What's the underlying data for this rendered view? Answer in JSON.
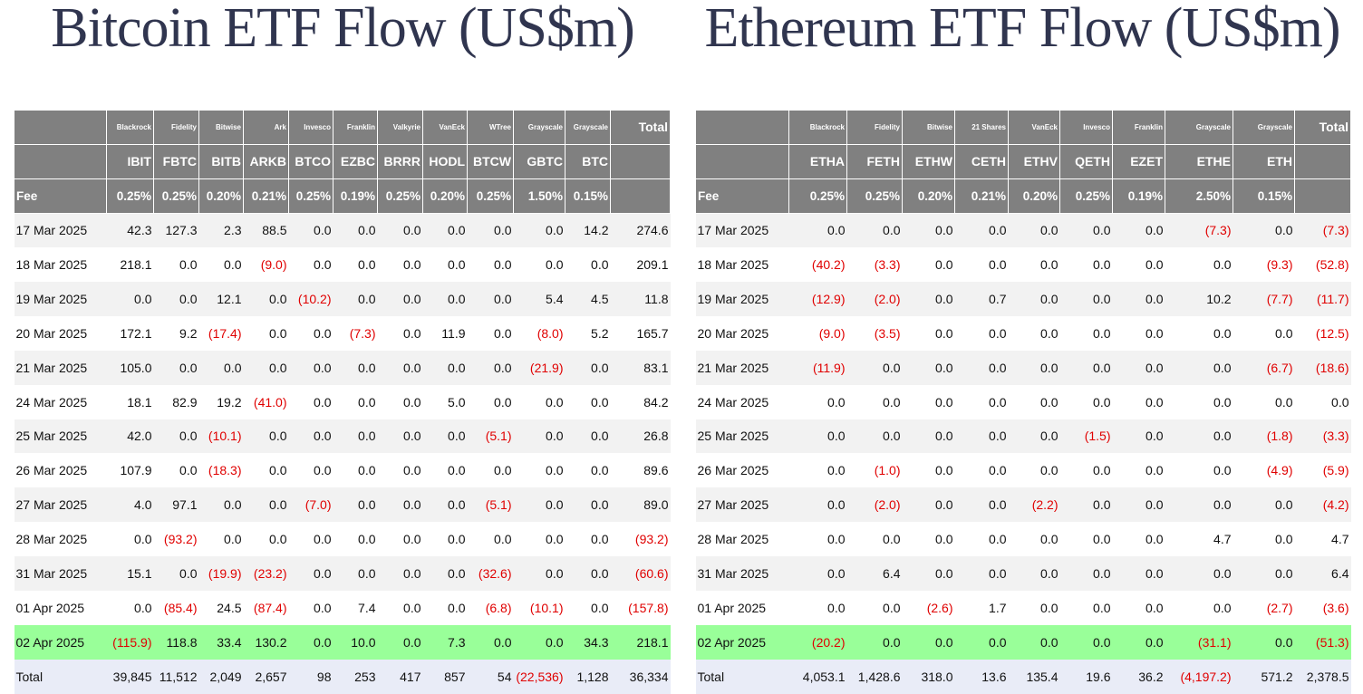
{
  "bitcoin": {
    "title": "Bitcoin ETF Flow (US$m)",
    "issuers": [
      "Blackrock",
      "Fidelity",
      "Bitwise",
      "Ark",
      "Invesco",
      "Franklin",
      "Valkyrie",
      "VanEck",
      "WTree",
      "Grayscale",
      "Grayscale"
    ],
    "total_header": "Total",
    "tickers": [
      "IBIT",
      "FBTC",
      "BITB",
      "ARKB",
      "BTCO",
      "EZBC",
      "BRRR",
      "HODL",
      "BTCW",
      "GBTC",
      "BTC"
    ],
    "fee_label": "Fee",
    "fees": [
      "0.25%",
      "0.25%",
      "0.20%",
      "0.21%",
      "0.25%",
      "0.19%",
      "0.25%",
      "0.20%",
      "0.25%",
      "1.50%",
      "0.15%"
    ],
    "rows": [
      {
        "date": "17 Mar 2025",
        "values": [
          "42.3",
          "127.3",
          "2.3",
          "88.5",
          "0.0",
          "0.0",
          "0.0",
          "0.0",
          "0.0",
          "0.0",
          "14.2",
          "274.6"
        ]
      },
      {
        "date": "18 Mar 2025",
        "values": [
          "218.1",
          "0.0",
          "0.0",
          "(9.0)",
          "0.0",
          "0.0",
          "0.0",
          "0.0",
          "0.0",
          "0.0",
          "0.0",
          "209.1"
        ]
      },
      {
        "date": "19 Mar 2025",
        "values": [
          "0.0",
          "0.0",
          "12.1",
          "0.0",
          "(10.2)",
          "0.0",
          "0.0",
          "0.0",
          "0.0",
          "5.4",
          "4.5",
          "11.8"
        ]
      },
      {
        "date": "20 Mar 2025",
        "values": [
          "172.1",
          "9.2",
          "(17.4)",
          "0.0",
          "0.0",
          "(7.3)",
          "0.0",
          "11.9",
          "0.0",
          "(8.0)",
          "5.2",
          "165.7"
        ]
      },
      {
        "date": "21 Mar 2025",
        "values": [
          "105.0",
          "0.0",
          "0.0",
          "0.0",
          "0.0",
          "0.0",
          "0.0",
          "0.0",
          "0.0",
          "(21.9)",
          "0.0",
          "83.1"
        ]
      },
      {
        "date": "24 Mar 2025",
        "values": [
          "18.1",
          "82.9",
          "19.2",
          "(41.0)",
          "0.0",
          "0.0",
          "0.0",
          "5.0",
          "0.0",
          "0.0",
          "0.0",
          "84.2"
        ]
      },
      {
        "date": "25 Mar 2025",
        "values": [
          "42.0",
          "0.0",
          "(10.1)",
          "0.0",
          "0.0",
          "0.0",
          "0.0",
          "0.0",
          "(5.1)",
          "0.0",
          "0.0",
          "26.8"
        ]
      },
      {
        "date": "26 Mar 2025",
        "values": [
          "107.9",
          "0.0",
          "(18.3)",
          "0.0",
          "0.0",
          "0.0",
          "0.0",
          "0.0",
          "0.0",
          "0.0",
          "0.0",
          "89.6"
        ]
      },
      {
        "date": "27 Mar 2025",
        "values": [
          "4.0",
          "97.1",
          "0.0",
          "0.0",
          "(7.0)",
          "0.0",
          "0.0",
          "0.0",
          "(5.1)",
          "0.0",
          "0.0",
          "89.0"
        ]
      },
      {
        "date": "28 Mar 2025",
        "values": [
          "0.0",
          "(93.2)",
          "0.0",
          "0.0",
          "0.0",
          "0.0",
          "0.0",
          "0.0",
          "0.0",
          "0.0",
          "0.0",
          "(93.2)"
        ]
      },
      {
        "date": "31 Mar 2025",
        "values": [
          "15.1",
          "0.0",
          "(19.9)",
          "(23.2)",
          "0.0",
          "0.0",
          "0.0",
          "0.0",
          "(32.6)",
          "0.0",
          "0.0",
          "(60.6)"
        ]
      },
      {
        "date": "01 Apr 2025",
        "values": [
          "0.0",
          "(85.4)",
          "24.5",
          "(87.4)",
          "0.0",
          "7.4",
          "0.0",
          "0.0",
          "(6.8)",
          "(10.1)",
          "0.0",
          "(157.8)"
        ]
      },
      {
        "date": "02 Apr 2025",
        "values": [
          "(115.9)",
          "118.8",
          "33.4",
          "130.2",
          "0.0",
          "10.0",
          "0.0",
          "7.3",
          "0.0",
          "0.0",
          "34.3",
          "218.1"
        ]
      }
    ],
    "totals": {
      "label": "Total",
      "values": [
        "39,845",
        "11,512",
        "2,049",
        "2,657",
        "98",
        "253",
        "417",
        "857",
        "54",
        "(22,536)",
        "1,128",
        "36,334"
      ]
    }
  },
  "ethereum": {
    "title": "Ethereum ETF Flow (US$m)",
    "issuers": [
      "Blackrock",
      "Fidelity",
      "Bitwise",
      "21 Shares",
      "VanEck",
      "Invesco",
      "Franklin",
      "Grayscale",
      "Grayscale"
    ],
    "total_header": "Total",
    "tickers": [
      "ETHA",
      "FETH",
      "ETHW",
      "CETH",
      "ETHV",
      "QETH",
      "EZET",
      "ETHE",
      "ETH"
    ],
    "fee_label": "Fee",
    "fees": [
      "0.25%",
      "0.25%",
      "0.20%",
      "0.21%",
      "0.20%",
      "0.25%",
      "0.19%",
      "2.50%",
      "0.15%"
    ],
    "rows": [
      {
        "date": "17 Mar 2025",
        "values": [
          "0.0",
          "0.0",
          "0.0",
          "0.0",
          "0.0",
          "0.0",
          "0.0",
          "(7.3)",
          "0.0",
          "(7.3)"
        ]
      },
      {
        "date": "18 Mar 2025",
        "values": [
          "(40.2)",
          "(3.3)",
          "0.0",
          "0.0",
          "0.0",
          "0.0",
          "0.0",
          "0.0",
          "(9.3)",
          "(52.8)"
        ]
      },
      {
        "date": "19 Mar 2025",
        "values": [
          "(12.9)",
          "(2.0)",
          "0.0",
          "0.7",
          "0.0",
          "0.0",
          "0.0",
          "10.2",
          "(7.7)",
          "(11.7)"
        ]
      },
      {
        "date": "20 Mar 2025",
        "values": [
          "(9.0)",
          "(3.5)",
          "0.0",
          "0.0",
          "0.0",
          "0.0",
          "0.0",
          "0.0",
          "0.0",
          "(12.5)"
        ]
      },
      {
        "date": "21 Mar 2025",
        "values": [
          "(11.9)",
          "0.0",
          "0.0",
          "0.0",
          "0.0",
          "0.0",
          "0.0",
          "0.0",
          "(6.7)",
          "(18.6)"
        ]
      },
      {
        "date": "24 Mar 2025",
        "values": [
          "0.0",
          "0.0",
          "0.0",
          "0.0",
          "0.0",
          "0.0",
          "0.0",
          "0.0",
          "0.0",
          "0.0"
        ]
      },
      {
        "date": "25 Mar 2025",
        "values": [
          "0.0",
          "0.0",
          "0.0",
          "0.0",
          "0.0",
          "(1.5)",
          "0.0",
          "0.0",
          "(1.8)",
          "(3.3)"
        ]
      },
      {
        "date": "26 Mar 2025",
        "values": [
          "0.0",
          "(1.0)",
          "0.0",
          "0.0",
          "0.0",
          "0.0",
          "0.0",
          "0.0",
          "(4.9)",
          "(5.9)"
        ]
      },
      {
        "date": "27 Mar 2025",
        "values": [
          "0.0",
          "(2.0)",
          "0.0",
          "0.0",
          "(2.2)",
          "0.0",
          "0.0",
          "0.0",
          "0.0",
          "(4.2)"
        ]
      },
      {
        "date": "28 Mar 2025",
        "values": [
          "0.0",
          "0.0",
          "0.0",
          "0.0",
          "0.0",
          "0.0",
          "0.0",
          "4.7",
          "0.0",
          "4.7"
        ]
      },
      {
        "date": "31 Mar 2025",
        "values": [
          "0.0",
          "6.4",
          "0.0",
          "0.0",
          "0.0",
          "0.0",
          "0.0",
          "0.0",
          "0.0",
          "6.4"
        ]
      },
      {
        "date": "01 Apr 2025",
        "values": [
          "0.0",
          "0.0",
          "(2.6)",
          "1.7",
          "0.0",
          "0.0",
          "0.0",
          "0.0",
          "(2.7)",
          "(3.6)"
        ]
      },
      {
        "date": "02 Apr 2025",
        "values": [
          "(20.2)",
          "0.0",
          "0.0",
          "0.0",
          "0.0",
          "0.0",
          "0.0",
          "(31.1)",
          "0.0",
          "(51.3)"
        ]
      }
    ],
    "totals": {
      "label": "Total",
      "values": [
        "4,053.1",
        "1,428.6",
        "318.0",
        "13.6",
        "135.4",
        "19.6",
        "36.2",
        "(4,197.2)",
        "571.2",
        "2,378.5"
      ]
    }
  }
}
